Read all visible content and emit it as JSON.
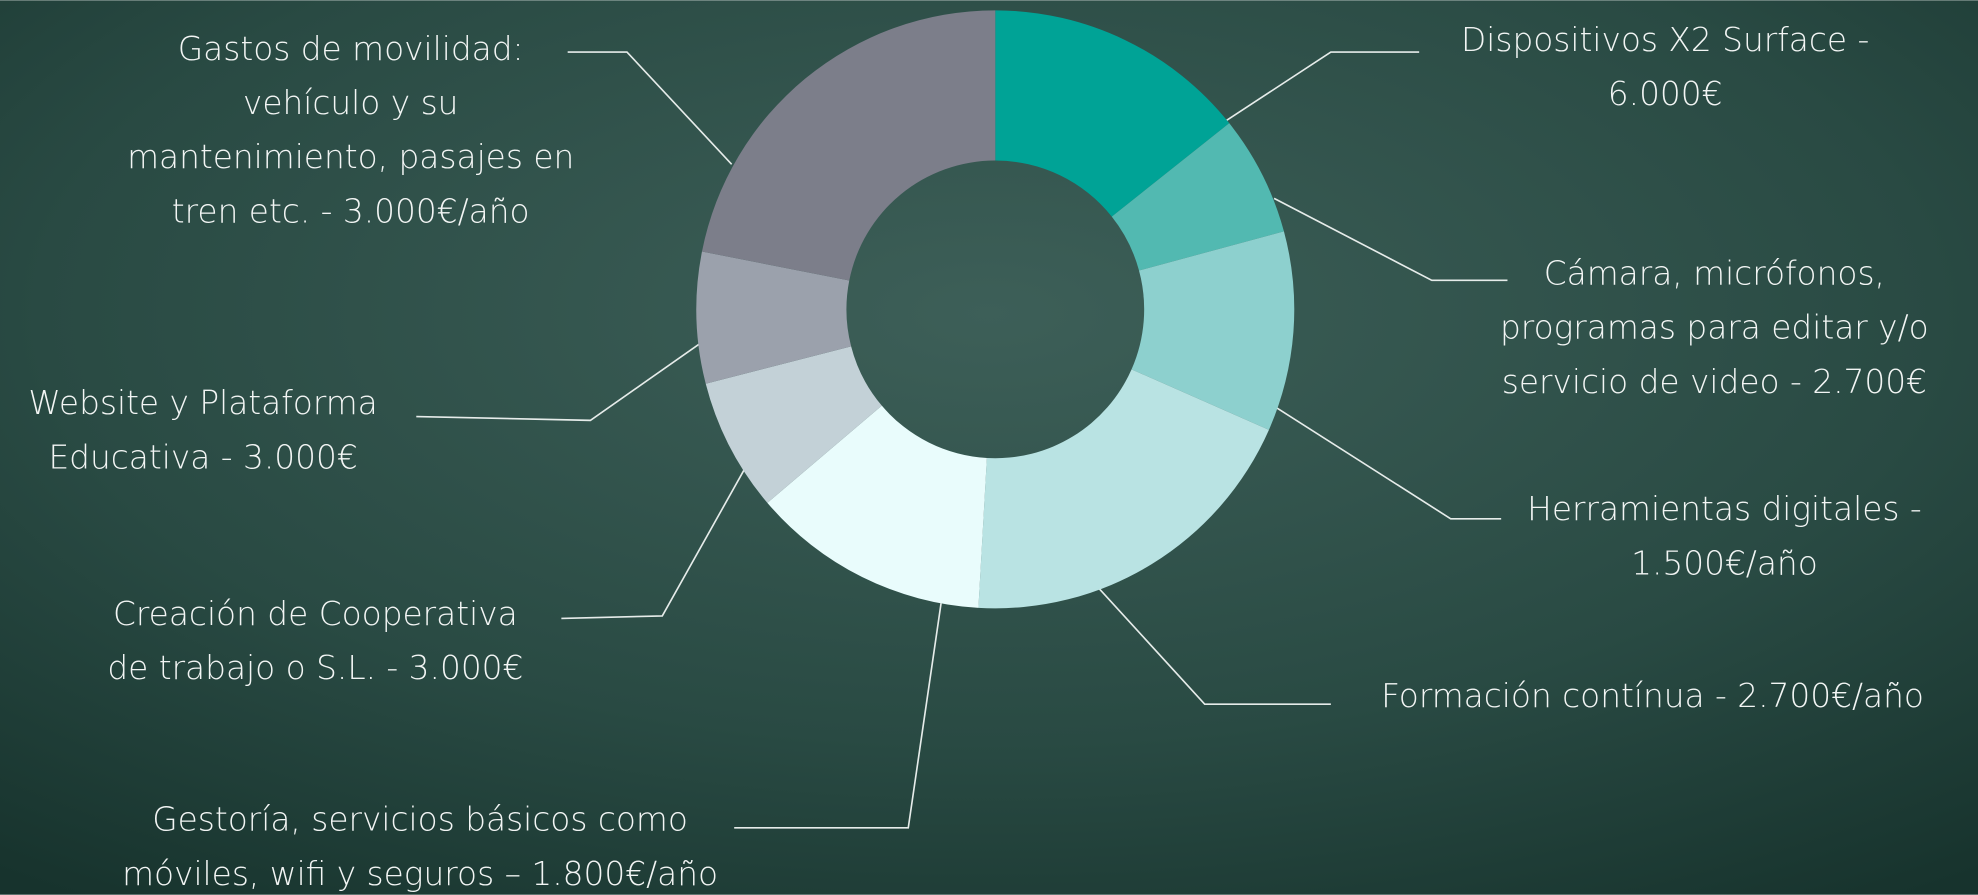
{
  "chart_data": {
    "type": "donut",
    "labels": [
      [
        "Dispositivos X2 Surface -",
        "6.000€"
      ],
      [
        "Cámara, micrófonos,",
        "programas para editar y/o",
        "servicio de video - 2.700€"
      ],
      [
        "Herramientas digitales -",
        "1.500€/año"
      ],
      [
        "Formación contínua - 2.700€/año"
      ],
      [
        "Gestoría, servicios básicos como",
        "móviles, wifi y seguros – 1.800€/año"
      ],
      [
        "Creación de Cooperativa",
        "de trabajo o S.L. - 3.000€"
      ],
      [
        "Website y Plataforma",
        "Educativa - 3.000€"
      ],
      [
        "Gastos de movilidad:",
        "vehículo y su",
        "mantenimiento, pasajes en",
        "tren etc. - 3.000€/año"
      ]
    ],
    "values": [
      14.3,
      6.5,
      10.8,
      19.3,
      12.9,
      7.2,
      7.1,
      21.9
    ],
    "colors": [
      "#00a396",
      "#52b9b1",
      "#8dd0ce",
      "#b9e3e3",
      "#e9fcfc",
      "#c3d1d7",
      "#9ba1ac",
      "#7c7e8a"
    ]
  }
}
